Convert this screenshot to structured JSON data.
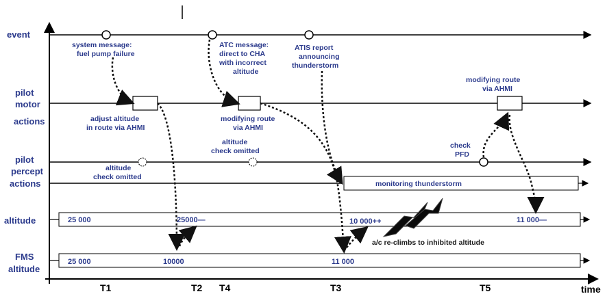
{
  "lanes": {
    "event": "event",
    "pilot_motor": [
      "pilot",
      "motor",
      "actions"
    ],
    "pilot_percept": [
      "pilot",
      "percept",
      "actions"
    ],
    "altitude": "altitude",
    "fms": [
      "FMS",
      "altitude"
    ]
  },
  "events": {
    "fuel_pump": [
      "system message:",
      "fuel pump failure"
    ],
    "atc": [
      "ATC message:",
      "direct to CHA",
      "with incorrect",
      "altitude"
    ],
    "atis": [
      "ATIS report",
      "announcing",
      "thunderstorm"
    ]
  },
  "motor": {
    "adjust": [
      "adjust altitude",
      "in route  via AHMI"
    ],
    "modify1": [
      "modifying route",
      "via AHMI"
    ],
    "modify2": [
      "modifying route",
      "via AHMI"
    ]
  },
  "percept": {
    "omit1": [
      "altitude",
      "check omitted"
    ],
    "omit2": [
      "altitude",
      "check omitted"
    ],
    "check_pfd": [
      "check",
      "PFD"
    ],
    "monitoring": "monitoring thunderstorm"
  },
  "altitude_values": {
    "a1": "25 000",
    "a2": "25000—",
    "a3": "10 000++",
    "a4": "11 000—"
  },
  "fms_values": {
    "f1": "25 000",
    "f2": "10000",
    "f3": "11 000"
  },
  "climb_note": "a/c  re-climbs to inhibited altitude",
  "time_axis": {
    "label": "time",
    "ticks": [
      "T1",
      "T2",
      "T4",
      "T3",
      "T5"
    ]
  },
  "colors": {
    "text": "#2b3a8c",
    "line": "#000000",
    "lightning": "#0a0a0a"
  }
}
